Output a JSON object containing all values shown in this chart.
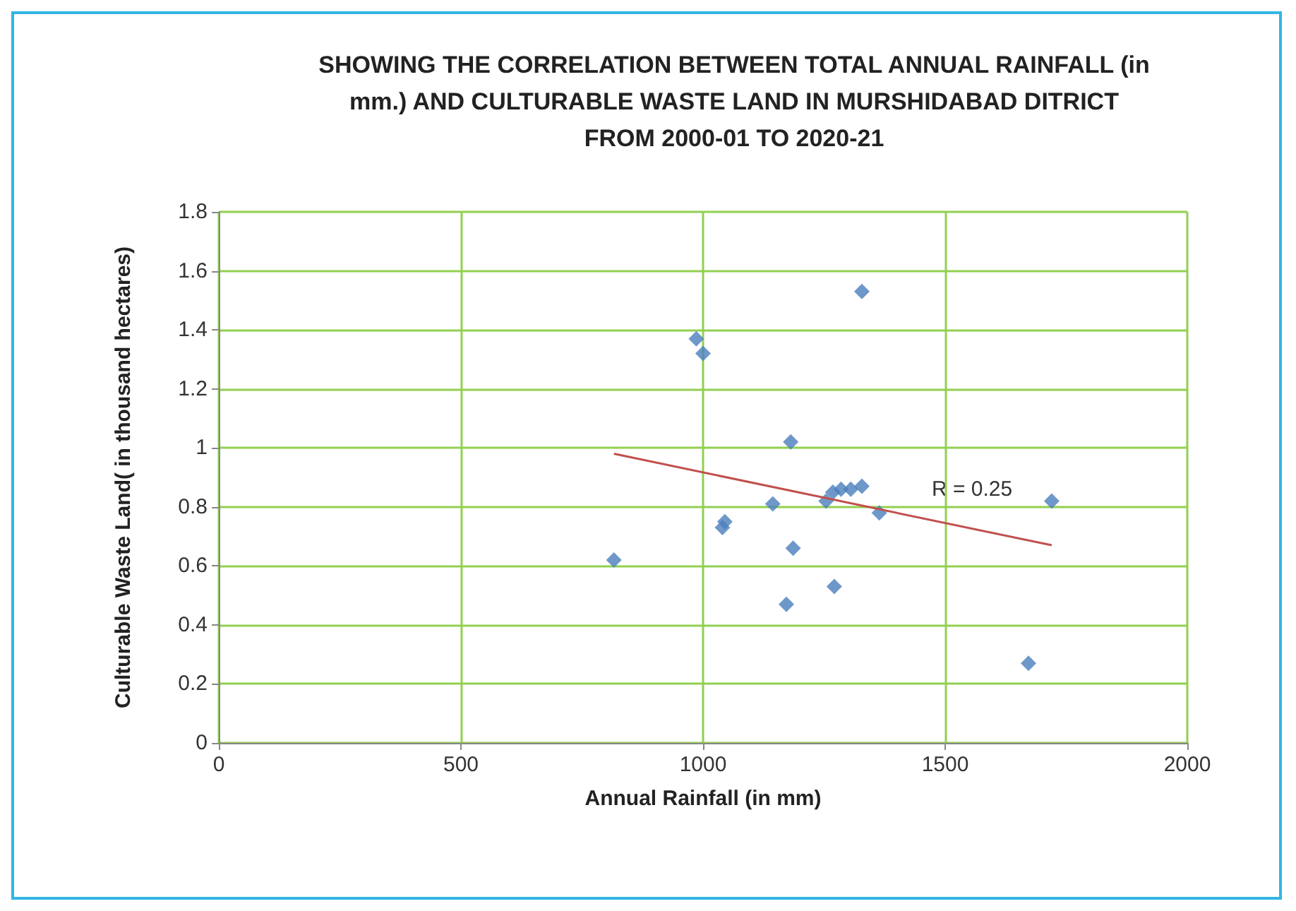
{
  "chart_data": {
    "type": "scatter",
    "title": "SHOWING THE CORRELATION BETWEEN TOTAL ANNUAL RAINFALL (in\nmm.) AND CULTURABLE WASTE LAND IN MURSHIDABAD DITRICT\nFROM 2000-01 TO 2020-21",
    "xlabel": "Annual Rainfall (in mm)",
    "ylabel": "Culturable Waste Land( in thousand hectares)",
    "annotations": [
      "R = 0.25"
    ],
    "series": [
      {
        "color": "#4a7ebb",
        "marker": "diamond",
        "x": [
          816,
          986,
          1000,
          1181,
          1328,
          1040,
          1045,
          1144,
          1186,
          1172,
          1271,
          1254,
          1268,
          1285,
          1305,
          1328,
          1364,
          1720,
          1672
        ],
        "values": [
          0.62,
          1.37,
          1.32,
          1.02,
          1.53,
          0.73,
          0.75,
          0.81,
          0.66,
          0.47,
          0.53,
          0.82,
          0.85,
          0.86,
          0.86,
          0.87,
          0.78,
          0.82,
          0.27
        ]
      },
      {
        "type": "line",
        "color": "#c0504d",
        "marker": "none",
        "x": [
          816,
          1720
        ],
        "values": [
          0.98,
          0.67
        ]
      }
    ],
    "xlim": [
      0,
      2000
    ],
    "xticks": [
      0,
      500,
      1000,
      1500,
      2000
    ],
    "ylim": [
      0,
      1.8
    ],
    "yticks": [
      0,
      0.2,
      0.4,
      0.6,
      0.8,
      1,
      1.2,
      1.4,
      1.6,
      1.8
    ],
    "grid": true
  }
}
